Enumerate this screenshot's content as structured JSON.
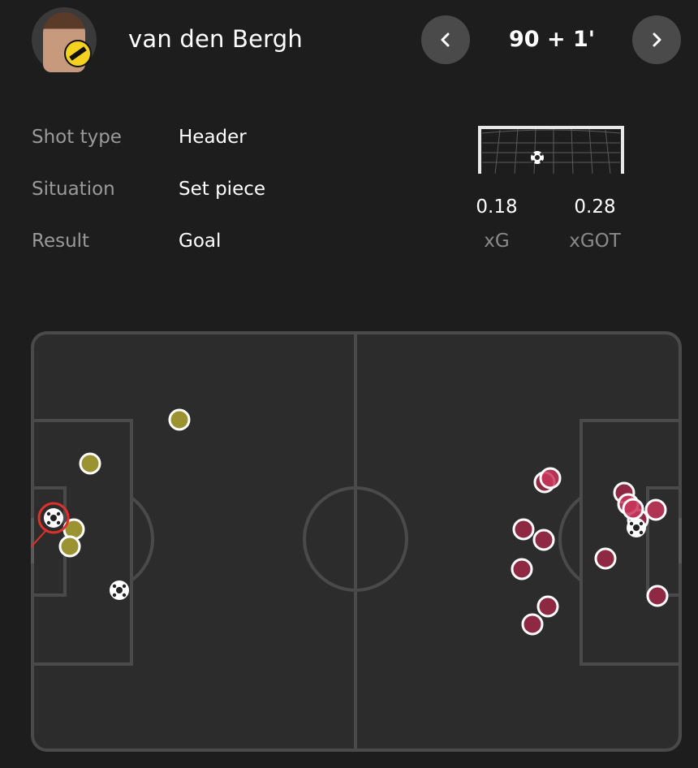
{
  "header": {
    "player_name": "van den Bergh",
    "minute": "90 + 1'",
    "prev_icon": "chevron-left-icon",
    "next_icon": "chevron-right-icon"
  },
  "shot_info": {
    "rows": [
      {
        "label": "Shot type",
        "value": "Header"
      },
      {
        "label": "Situation",
        "value": "Set piece"
      },
      {
        "label": "Result",
        "value": "Goal"
      }
    ]
  },
  "stats": {
    "xg_value": "0.18",
    "xg_label": "xG",
    "xgot_value": "0.28",
    "xgot_label": "xGOT"
  },
  "colors": {
    "background": "#1d1d1d",
    "pitch": "#2c2c2c",
    "pitch_lines": "#4a4a4a",
    "home_shot": "#9b9331",
    "away_shot": "#8e2843",
    "away_shot_highlight": "#c9365c",
    "selected_ring": "#e0302a",
    "nav_button": "#4a4a4a"
  },
  "pitch_map": {
    "selected_shot": "home-goal-selected",
    "home_shots": 6,
    "home_goals": 2,
    "away_shots": 16,
    "away_goals": 1
  }
}
